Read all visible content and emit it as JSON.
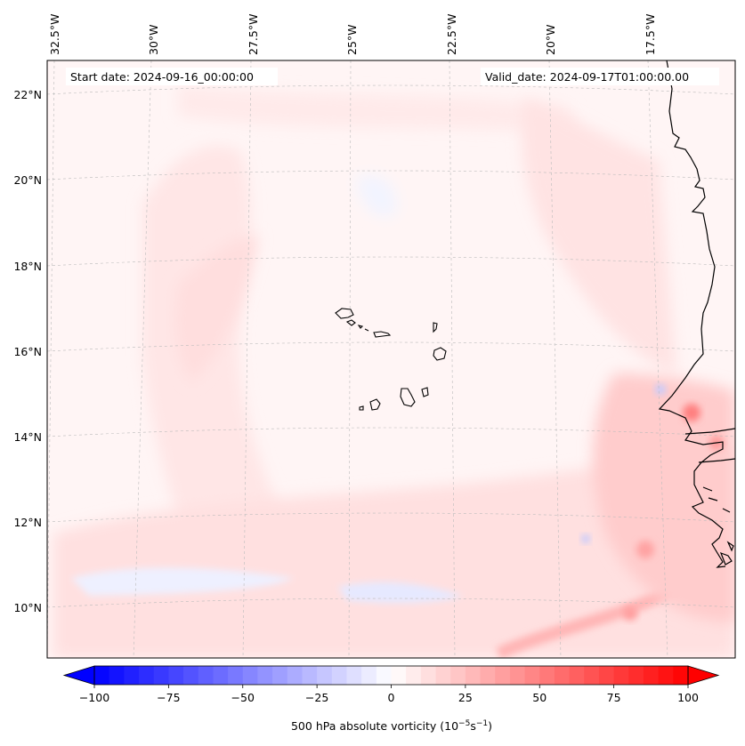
{
  "header": {
    "start_date": "Start date: 2024-09-16_00:00:00",
    "valid_date": "Valid_date: 2024-09-17T01:00:00.00"
  },
  "lon_labels": [
    "32.5°W",
    "30°W",
    "27.5°W",
    "25°W",
    "22.5°W",
    "20°W",
    "17.5°W"
  ],
  "lat_labels": [
    "22°N",
    "20°N",
    "18°N",
    "16°N",
    "14°N",
    "12°N",
    "10°N"
  ],
  "colorbar": {
    "ticks": [
      "−100",
      "−75",
      "−50",
      "−25",
      "0",
      "25",
      "50",
      "75",
      "100"
    ],
    "tick_values": [
      -100,
      -75,
      -50,
      -25,
      0,
      25,
      50,
      75,
      100
    ],
    "min": -100,
    "max": 100,
    "levels": 40,
    "label_main": "500 hPa absolute vorticity (10",
    "label_exp1": "−5",
    "label_mid": "s",
    "label_exp2": "−1",
    "label_end": ")",
    "colormap": "bwr",
    "color_min": "#0000ff",
    "color_mid": "#ffffff",
    "color_max": "#ff0000"
  },
  "map": {
    "projection": "lambert-conformal",
    "lon_range": [
      -33,
      -15.5
    ],
    "lat_range": [
      9,
      22.7
    ],
    "coastline_color": "#000000",
    "grid_color": "#bbbbbb",
    "grid_style": "dashed"
  }
}
